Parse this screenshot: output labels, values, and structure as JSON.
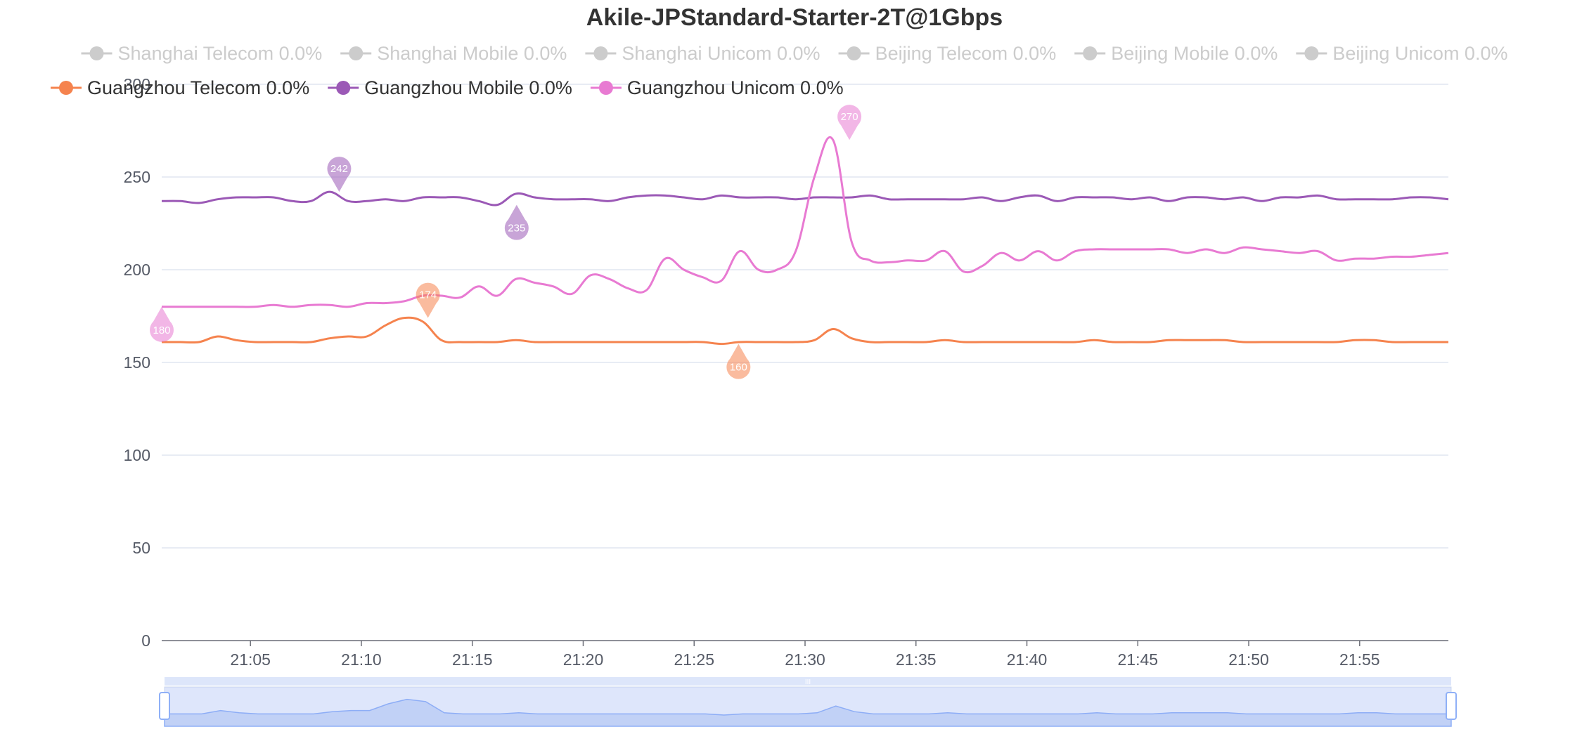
{
  "chart_data": {
    "type": "line",
    "title": "Akile-JPStandard-Starter-2T@1Gbps",
    "xlabel": "",
    "ylabel": "",
    "ylim": [
      0,
      300
    ],
    "yticks": [
      0,
      50,
      100,
      150,
      200,
      250,
      300
    ],
    "xticks": [
      "21:05",
      "21:10",
      "21:15",
      "21:20",
      "21:25",
      "21:30",
      "21:35",
      "21:40",
      "21:45",
      "21:50",
      "21:55"
    ],
    "xlim_minutes": [
      1,
      59
    ],
    "x_start": "21:01",
    "grid": true,
    "legend_position": "top",
    "legend": [
      {
        "label": "Shanghai Telecom 0.0%",
        "color": "#cccccc",
        "active": false
      },
      {
        "label": "Shanghai Mobile 0.0%",
        "color": "#cccccc",
        "active": false
      },
      {
        "label": "Shanghai Unicom 0.0%",
        "color": "#cccccc",
        "active": false
      },
      {
        "label": "Beijing Telecom 0.0%",
        "color": "#cccccc",
        "active": false
      },
      {
        "label": "Beijing Mobile 0.0%",
        "color": "#cccccc",
        "active": false
      },
      {
        "label": "Beijing Unicom 0.0%",
        "color": "#cccccc",
        "active": false
      },
      {
        "label": "Guangzhou Telecom 0.0%",
        "color": "#f5834e",
        "active": true
      },
      {
        "label": "Guangzhou Mobile 0.0%",
        "color": "#9b59b6",
        "active": true
      },
      {
        "label": "Guangzhou Unicom 0.0%",
        "color": "#e87ad2",
        "active": true
      }
    ],
    "series": [
      {
        "name": "Guangzhou Telecom 0.0%",
        "color": "#f5834e",
        "values": [
          161,
          161,
          161,
          164,
          162,
          161,
          161,
          161,
          161,
          163,
          164,
          164,
          170,
          174,
          172,
          162,
          161,
          161,
          161,
          162,
          161,
          161,
          161,
          161,
          161,
          161,
          161,
          161,
          161,
          161,
          160,
          161,
          161,
          161,
          161,
          162,
          168,
          163,
          161,
          161,
          161,
          161,
          162,
          161,
          161,
          161,
          161,
          161,
          161,
          161,
          162,
          161,
          161,
          161,
          162,
          162,
          162,
          162,
          161,
          161,
          161,
          161,
          161,
          161,
          162,
          162,
          161,
          161,
          161,
          161
        ]
      },
      {
        "name": "Guangzhou Mobile 0.0%",
        "color": "#9b59b6",
        "values": [
          237,
          237,
          236,
          238,
          239,
          239,
          239,
          237,
          237,
          242,
          237,
          237,
          238,
          237,
          239,
          239,
          239,
          237,
          235,
          241,
          239,
          238,
          238,
          238,
          237,
          239,
          240,
          240,
          239,
          238,
          240,
          239,
          239,
          239,
          238,
          239,
          239,
          239,
          240,
          238,
          238,
          238,
          238,
          238,
          239,
          237,
          239,
          240,
          237,
          239,
          239,
          239,
          238,
          239,
          237,
          239,
          239,
          238,
          239,
          237,
          239,
          239,
          240,
          238,
          238,
          238,
          238,
          239,
          239,
          238
        ]
      },
      {
        "name": "Guangzhou Unicom 0.0%",
        "color": "#e87ad2",
        "values": [
          180,
          180,
          180,
          180,
          180,
          180,
          181,
          180,
          181,
          181,
          180,
          182,
          182,
          183,
          186,
          186,
          185,
          191,
          186,
          195,
          193,
          191,
          187,
          197,
          195,
          190,
          189,
          206,
          200,
          196,
          194,
          210,
          200,
          200,
          210,
          250,
          270,
          215,
          205,
          204,
          205,
          205,
          210,
          199,
          202,
          209,
          205,
          210,
          205,
          210,
          211,
          211,
          211,
          211,
          211,
          209,
          211,
          209,
          212,
          211,
          210,
          209,
          210,
          205,
          206,
          206,
          207,
          207,
          208,
          209
        ]
      }
    ],
    "markers": [
      {
        "series": "Guangzhou Telecom 0.0%",
        "type": "max",
        "minute": 13,
        "value": 174,
        "label": "174"
      },
      {
        "series": "Guangzhou Telecom 0.0%",
        "type": "min",
        "minute": 27,
        "value": 160,
        "label": "160"
      },
      {
        "series": "Guangzhou Mobile 0.0%",
        "type": "max",
        "minute": 9,
        "value": 242,
        "label": "242"
      },
      {
        "series": "Guangzhou Mobile 0.0%",
        "type": "min",
        "minute": 17,
        "value": 235,
        "label": "235"
      },
      {
        "series": "Guangzhou Unicom 0.0%",
        "type": "max",
        "minute": 32,
        "value": 270,
        "label": "270"
      },
      {
        "series": "Guangzhou Unicom 0.0%",
        "type": "min",
        "minute": 1,
        "value": 180,
        "label": "180"
      }
    ],
    "datazoom": {
      "start_percent": 0,
      "end_percent": 100,
      "handle_label": "III"
    }
  }
}
